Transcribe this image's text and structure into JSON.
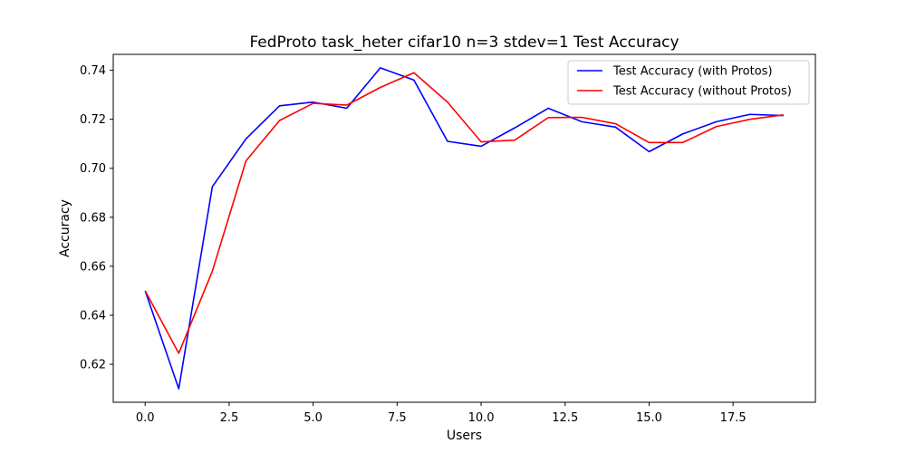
{
  "chart_data": {
    "type": "line",
    "title": "FedProto task_heter cifar10 n=3 stdev=1 Test Accuracy",
    "xlabel": "Users",
    "ylabel": "Accuracy",
    "xlim": [
      -0.95,
      19.95
    ],
    "ylim": [
      0.6045,
      0.7465
    ],
    "xticks": [
      0.0,
      2.5,
      5.0,
      7.5,
      10.0,
      12.5,
      15.0,
      17.5
    ],
    "xtick_labels": [
      "0.0",
      "2.5",
      "5.0",
      "7.5",
      "10.0",
      "12.5",
      "15.0",
      "17.5"
    ],
    "yticks": [
      0.62,
      0.64,
      0.66,
      0.68,
      0.7,
      0.72,
      0.74
    ],
    "ytick_labels": [
      "0.62",
      "0.64",
      "0.66",
      "0.68",
      "0.70",
      "0.72",
      "0.74"
    ],
    "grid": false,
    "legend_position": "top-right",
    "x": [
      0,
      1,
      2,
      3,
      4,
      5,
      6,
      7,
      8,
      9,
      10,
      11,
      12,
      13,
      14,
      15,
      16,
      17,
      18,
      19
    ],
    "series": [
      {
        "name": "Test Accuracy (with Protos)",
        "color": "#0000ff",
        "values": [
          0.65,
          0.61,
          0.6925,
          0.712,
          0.7255,
          0.727,
          0.7245,
          0.741,
          0.736,
          0.711,
          0.709,
          0.7165,
          0.7245,
          0.719,
          0.7168,
          0.7068,
          0.714,
          0.719,
          0.722,
          0.7215
        ]
      },
      {
        "name": "Test Accuracy (without Protos)",
        "color": "#ff0000",
        "values": [
          0.65,
          0.6245,
          0.658,
          0.703,
          0.7195,
          0.7265,
          0.7258,
          0.733,
          0.739,
          0.727,
          0.7108,
          0.7115,
          0.7207,
          0.7208,
          0.7182,
          0.7105,
          0.7105,
          0.717,
          0.72,
          0.7218
        ]
      }
    ]
  }
}
